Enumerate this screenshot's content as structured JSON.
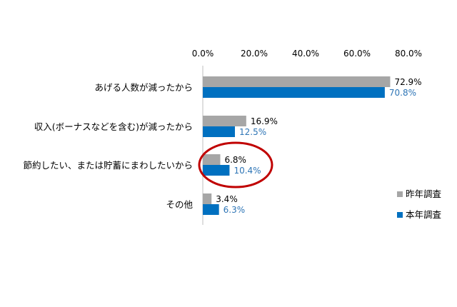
{
  "chart_data": {
    "type": "bar",
    "orientation": "horizontal",
    "categories": [
      "あげる人数が減ったから",
      "収入(ボーナスなどを含む)が減ったから",
      "節約したい、または貯蓄にまわしたいから",
      "その他"
    ],
    "series": [
      {
        "name": "昨年調査",
        "values": [
          72.9,
          16.9,
          6.8,
          3.4
        ],
        "labels": [
          "72.9%",
          "16.9%",
          "6.8%",
          "3.4%"
        ],
        "color": "#a6a6a6",
        "label_color": "#000000"
      },
      {
        "name": "本年調査",
        "values": [
          70.8,
          12.5,
          10.4,
          6.3
        ],
        "labels": [
          "70.8%",
          "12.5%",
          "10.4%",
          "6.3%"
        ],
        "color": "#0070c0",
        "label_color": "#2e75b6"
      }
    ],
    "xlim": [
      0,
      80
    ],
    "ticks": [
      0,
      20,
      40,
      60,
      80
    ],
    "tick_labels": [
      "0.0%",
      "20.0%",
      "40.0%",
      "60.0%",
      "80.0%"
    ],
    "axis_position": "top",
    "grid": false,
    "legend_position": "right",
    "annotation": {
      "type": "ellipse-highlight",
      "category_index": 2,
      "color": "#c00000"
    }
  }
}
